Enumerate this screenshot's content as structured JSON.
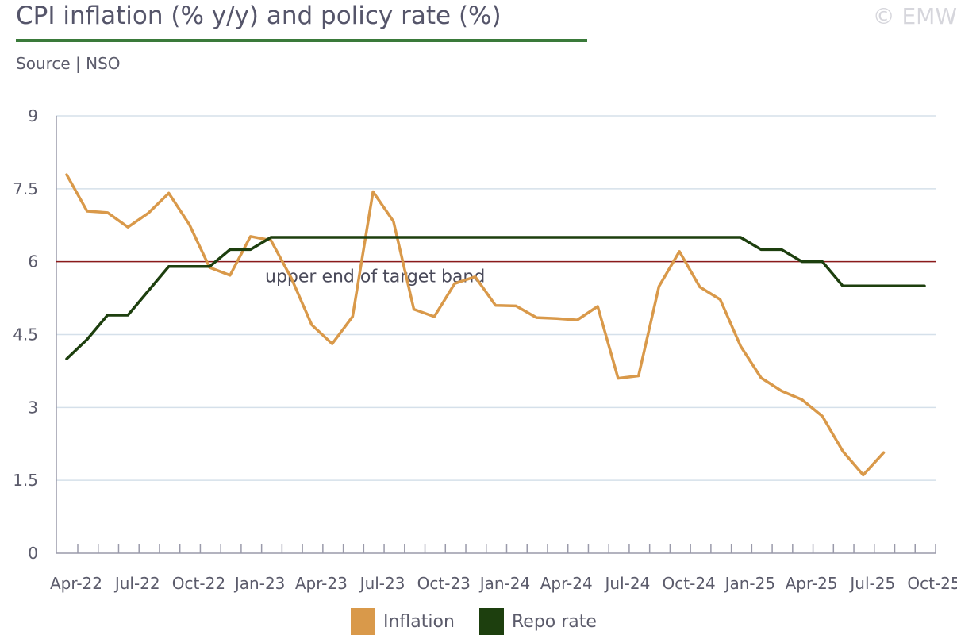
{
  "header": {
    "title": "CPI inflation (% y/y) and policy rate (%)",
    "source": "Source | NSO",
    "copyright": "© EMW"
  },
  "colors": {
    "inflation": "#d9994a",
    "repo": "#1d3f0e",
    "target": "#8b1a1a",
    "grid": "#d5e0ea",
    "axis": "#9a9aaa",
    "title_rule": "#3a7a3a"
  },
  "chart_data": {
    "type": "line",
    "title": "CPI inflation (% y/y) and policy rate (%)",
    "ylim": [
      0,
      9
    ],
    "yticks": [
      "0",
      "1.5",
      "3",
      "4.5",
      "6",
      "7.5",
      "9"
    ],
    "grid": true,
    "legend": "bottom-center",
    "x": [
      "Apr-22",
      "May-22",
      "Jun-22",
      "Jul-22",
      "Aug-22",
      "Sep-22",
      "Oct-22",
      "Nov-22",
      "Dec-22",
      "Jan-23",
      "Feb-23",
      "Mar-23",
      "Apr-23",
      "May-23",
      "Jun-23",
      "Jul-23",
      "Aug-23",
      "Sep-23",
      "Oct-23",
      "Nov-23",
      "Dec-23",
      "Jan-24",
      "Feb-24",
      "Mar-24",
      "Apr-24",
      "May-24",
      "Jun-24",
      "Jul-24",
      "Aug-24",
      "Sep-24",
      "Oct-24",
      "Nov-24",
      "Dec-24",
      "Jan-25",
      "Feb-25",
      "Mar-25",
      "Apr-25",
      "May-25",
      "Jun-25",
      "Jul-25",
      "Aug-25",
      "Sep-25",
      "Oct-25"
    ],
    "xtick_labels": [
      "Apr-22",
      "Jul-22",
      "Oct-22",
      "Jan-23",
      "Apr-23",
      "Jul-23",
      "Oct-23",
      "Jan-24",
      "Apr-24",
      "Jul-24",
      "Oct-24",
      "Jan-25",
      "Apr-25",
      "Jul-25",
      "Oct-25"
    ],
    "series": [
      {
        "name": "Inflation",
        "color": "#d9994a",
        "values": [
          7.79,
          7.04,
          7.01,
          6.71,
          7.0,
          7.41,
          6.77,
          5.88,
          5.72,
          6.52,
          6.44,
          5.66,
          4.7,
          4.31,
          4.87,
          7.44,
          6.83,
          5.02,
          4.87,
          5.55,
          5.69,
          5.1,
          5.09,
          4.85,
          4.83,
          4.8,
          5.08,
          3.6,
          3.65,
          5.49,
          6.21,
          5.48,
          5.22,
          4.26,
          3.61,
          3.34,
          3.16,
          2.82,
          2.1,
          1.61,
          2.07,
          null,
          null
        ]
      },
      {
        "name": "Repo rate",
        "color": "#1d3f0e",
        "values": [
          4.0,
          4.4,
          4.9,
          4.9,
          5.4,
          5.9,
          5.9,
          5.9,
          6.25,
          6.25,
          6.5,
          6.5,
          6.5,
          6.5,
          6.5,
          6.5,
          6.5,
          6.5,
          6.5,
          6.5,
          6.5,
          6.5,
          6.5,
          6.5,
          6.5,
          6.5,
          6.5,
          6.5,
          6.5,
          6.5,
          6.5,
          6.5,
          6.5,
          6.5,
          6.25,
          6.25,
          6.0,
          6.0,
          5.5,
          5.5,
          5.5,
          5.5,
          5.5
        ]
      }
    ],
    "annotations": [
      {
        "type": "hline",
        "y": 6,
        "label": "upper end of target band",
        "color": "#8b1a1a"
      }
    ]
  }
}
